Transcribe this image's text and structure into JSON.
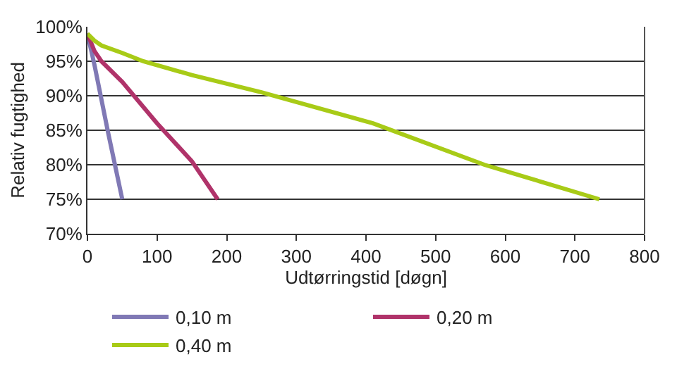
{
  "chart_data": {
    "type": "line",
    "xlabel": "Udtørringstid [døgn]",
    "ylabel": "Relativ fugtighed",
    "xlim": [
      0,
      800
    ],
    "xticks": [
      0,
      100,
      200,
      300,
      400,
      500,
      600,
      700,
      800
    ],
    "ylim": [
      70,
      100
    ],
    "yticks": [
      {
        "value": 70,
        "label": "70%"
      },
      {
        "value": 75,
        "label": "75%"
      },
      {
        "value": 80,
        "label": "80%"
      },
      {
        "value": 85,
        "label": "85%"
      },
      {
        "value": 90,
        "label": "90%"
      },
      {
        "value": 95,
        "label": "95%"
      },
      {
        "value": 100,
        "label": "100%"
      }
    ],
    "grid": "y",
    "legend": "bottom",
    "marker": "none",
    "line_style": "solid",
    "series": [
      {
        "name": "0,10 m",
        "color": "#8079b5",
        "x": [
          0,
          10,
          30,
          50
        ],
        "values": [
          99,
          94.5,
          84.5,
          75
        ]
      },
      {
        "name": "0,20 m",
        "color": "#b0336a",
        "x": [
          0,
          10,
          20,
          50,
          100,
          150,
          187
        ],
        "values": [
          99,
          96.5,
          95,
          92,
          86,
          80.5,
          75
        ]
      },
      {
        "name": "0,40 m",
        "color": "#a8cb17",
        "x": [
          0,
          10,
          20,
          50,
          80,
          150,
          250,
          410,
          570,
          735
        ],
        "values": [
          99,
          98,
          97.3,
          96.2,
          95,
          93,
          90.5,
          86,
          80,
          75
        ]
      }
    ]
  }
}
